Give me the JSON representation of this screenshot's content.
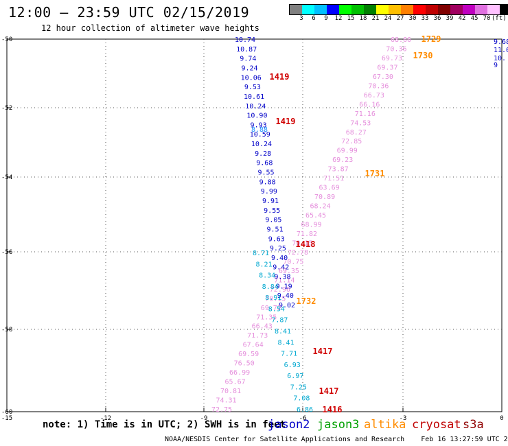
{
  "header": {
    "title": "12:00 — 23:59 UTC 02/15/2019",
    "subtitle": "12 hour collection of altimeter wave heights"
  },
  "legend": {
    "colors": [
      "#808080",
      "#00ffff",
      "#00c0ff",
      "#0000ff",
      "#00ff00",
      "#00c000",
      "#008000",
      "#ffff00",
      "#ffc000",
      "#ff8000",
      "#ff0000",
      "#c00000",
      "#800000",
      "#a00060",
      "#c000c0",
      "#e070e0",
      "#ffc0ff",
      "#000000"
    ],
    "labels": [
      "3",
      "6",
      "9",
      "12",
      "15",
      "18",
      "21",
      "24",
      "27",
      "30",
      "33",
      "36",
      "39",
      "42",
      "45",
      "70"
    ],
    "unit": "(ft)"
  },
  "axes": {
    "lat_labels": [
      "-50",
      "-52",
      "-54",
      "-56",
      "-58",
      "-60"
    ],
    "lon_labels": [
      "-15",
      "-12",
      "-9",
      "-6",
      "-3",
      "0"
    ]
  },
  "jason2": {
    "color": "#0000c8",
    "values": [
      "10.74",
      "10.87",
      "9.74",
      "9.24",
      "10.06",
      "9.53",
      "10.61",
      "10.24",
      "10.90",
      "9.93",
      "10.59",
      "10.24",
      "9.28",
      "9.68",
      "9.55",
      "9.88",
      "9.99",
      "9.91",
      "9.55",
      "9.05",
      "9.51",
      "9.63",
      "9.25",
      "9.40",
      "9.42",
      "9.38",
      "9.19",
      "9.40",
      "9.02"
    ],
    "light_values": [
      "8.88"
    ],
    "cyan_values": [
      "8.71",
      "8.21",
      "8.34",
      "8.84",
      "8.91",
      "8.54",
      "7.87",
      "8.41",
      "8.41",
      "7.71",
      "6.93",
      "6.97",
      "7.25",
      "7.08",
      "6.86"
    ],
    "edge_values": [
      "9.68",
      "11.0",
      "10.",
      "9"
    ],
    "times": [
      "1419",
      "1419",
      "1418",
      "1417",
      "1417",
      "1416"
    ]
  },
  "altika": {
    "values": [
      "68.66",
      "70.36",
      "69.73",
      "69.37",
      "67.30",
      "70.36",
      "66.73",
      "66.16",
      "71.16",
      "74.53",
      "68.27",
      "72.85",
      "69.99",
      "69.23",
      "73.87",
      "71.51",
      "63.69",
      "70.89",
      "68.24",
      "65.45",
      "68.99",
      "71.82",
      "70.15",
      "72.78",
      "70.75",
      "69.35",
      "71.14",
      "72.96",
      "70.15",
      "69.72",
      "71.35",
      "66.43",
      "71.73",
      "67.64",
      "69.59",
      "76.50",
      "66.99",
      "65.67",
      "70.81",
      "74.31",
      "72.75"
    ],
    "times": [
      "1729",
      "1730",
      "1731",
      "1732"
    ]
  },
  "footer": {
    "note": "note: 1) Time is in UTC; 2) SWH is in feet",
    "satellites": [
      "jason2",
      "jason3",
      "altika",
      "cryosat",
      "s3a"
    ],
    "credit": "NOAA/NESDIS Center for Satellite Applications and Research    Feb 16 13:27:59 UTC 2019"
  }
}
